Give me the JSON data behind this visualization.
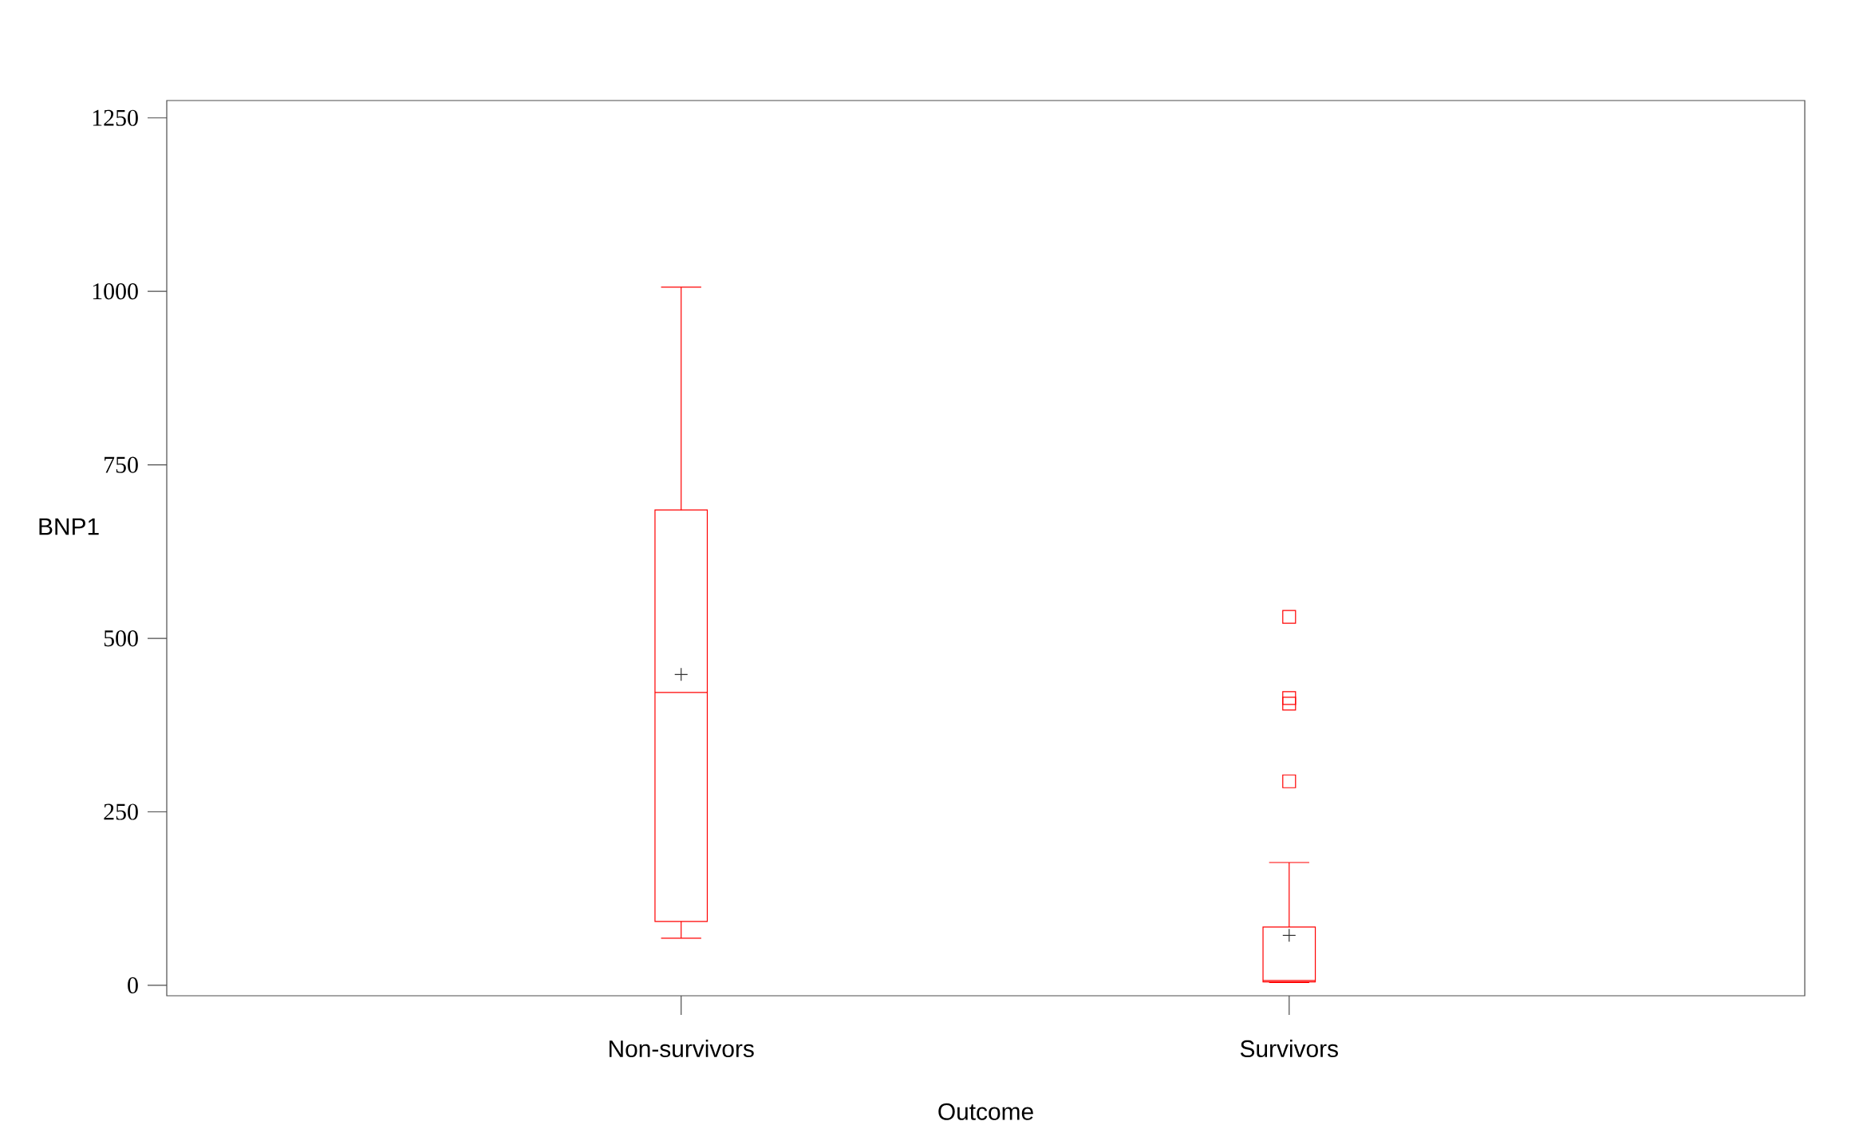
{
  "chart_data": {
    "type": "box",
    "xlabel": "Outcome",
    "ylabel": "BNP1",
    "categories": [
      "Non-survivors",
      "Survivors"
    ],
    "color": "#ff0000",
    "boxes": [
      {
        "low": 68,
        "q1": 92,
        "median": 422,
        "q3": 685,
        "high": 1006,
        "mean": 448
      },
      {
        "low": 4,
        "q1": 5,
        "median": 7,
        "q3": 84,
        "high": 177,
        "mean": 72,
        "outliers": [
          531,
          414,
          406,
          294
        ]
      }
    ],
    "ylim": [
      -15,
      1275
    ],
    "yticks": [
      0,
      250,
      500,
      750,
      1000,
      1250
    ],
    "grid": false
  }
}
